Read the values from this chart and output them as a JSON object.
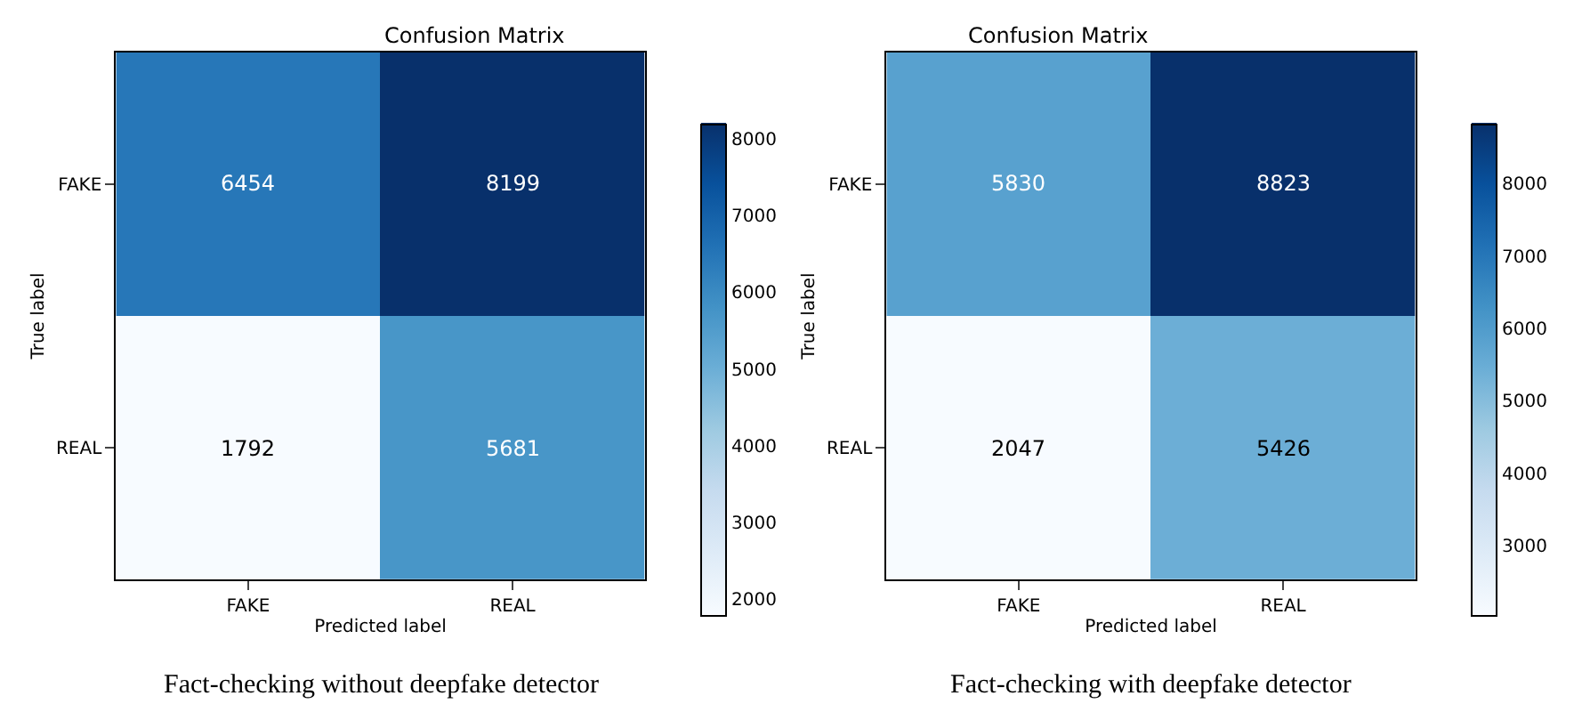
{
  "chart_data": [
    {
      "type": "heatmap",
      "title": "Confusion Matrix",
      "xlabel": "Predicted label",
      "ylabel": "True label",
      "categories": [
        "FAKE",
        "REAL"
      ],
      "y_categories": [
        "FAKE",
        "REAL"
      ],
      "cells": [
        [
          6454,
          8199
        ],
        [
          1792,
          5681
        ]
      ],
      "clim": [
        1792,
        8199
      ],
      "cticks": [
        2000,
        3000,
        4000,
        5000,
        6000,
        7000,
        8000
      ],
      "data_labels": true,
      "annotations": [
        "Fact-checking without deepfake detector"
      ]
    },
    {
      "type": "heatmap",
      "title": "Confusion Matrix",
      "xlabel": "Predicted label",
      "ylabel": "True label",
      "categories": [
        "FAKE",
        "REAL"
      ],
      "y_categories": [
        "FAKE",
        "REAL"
      ],
      "cells": [
        [
          5830,
          8823
        ],
        [
          2047,
          5426
        ]
      ],
      "clim": [
        2047,
        8823
      ],
      "cticks": [
        3000,
        4000,
        5000,
        6000,
        7000,
        8000
      ],
      "data_labels": true,
      "annotations": [
        "Fact-checking with deepfake detector"
      ]
    }
  ]
}
